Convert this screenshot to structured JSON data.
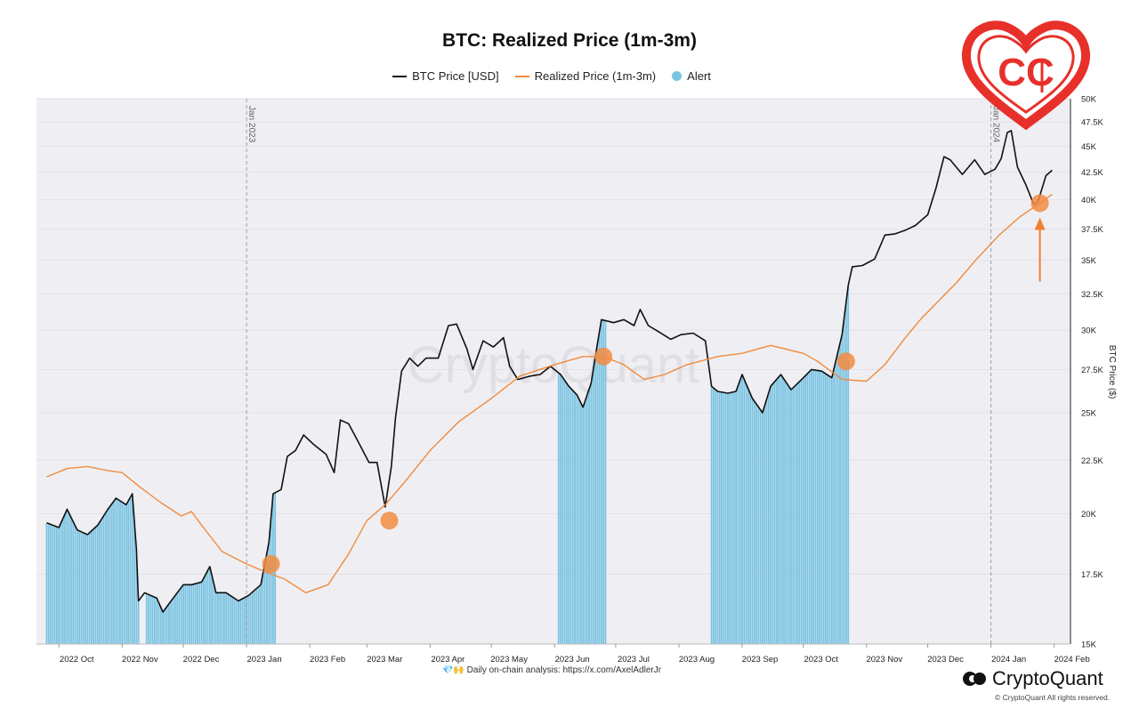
{
  "header": {
    "title": "BTC: Realized Price (1m-3m)"
  },
  "legend": {
    "price_label": "BTC Price [USD]",
    "realized_label": "Realized Price (1m-3m)",
    "alert_label": "Alert"
  },
  "footer": {
    "note": "💎🙌 Daily on-chain analysis: https://x.com/AxelAdlerJr",
    "brand": "CryptoQuant",
    "copyright": "© CryptoQuant All rights reserved."
  },
  "colors": {
    "price": "#111111",
    "realized": "#f08a3c",
    "alert": "#79c3e2",
    "plot_bg": "#efeff3",
    "marker": "#f28c42",
    "logo_red": "#e8302a"
  },
  "icons": {
    "logo": "cc-heart-logo",
    "brand": "cryptoquant-logo-icon"
  },
  "chart_data": {
    "type": "line",
    "title": "BTC: Realized Price (1m-3m)",
    "ylabel": "BTC Price ($)",
    "y_scale": "log",
    "ylim": [
      15000,
      50000
    ],
    "xlim": [
      "2022-09-20",
      "2024-02-09"
    ],
    "x_ticks": [
      {
        "date": "2022-10-01",
        "label": "2022 Oct"
      },
      {
        "date": "2022-11-01",
        "label": "2022 Nov"
      },
      {
        "date": "2022-12-01",
        "label": "2022 Dec"
      },
      {
        "date": "2023-01-01",
        "label": "2023 Jan"
      },
      {
        "date": "2023-02-01",
        "label": "2023 Feb"
      },
      {
        "date": "2023-03-01",
        "label": "2023 Mar"
      },
      {
        "date": "2023-04-01",
        "label": "2023 Apr"
      },
      {
        "date": "2023-05-01",
        "label": "2023 May"
      },
      {
        "date": "2023-06-01",
        "label": "2023 Jun"
      },
      {
        "date": "2023-07-01",
        "label": "2023 Jul"
      },
      {
        "date": "2023-08-01",
        "label": "2023 Aug"
      },
      {
        "date": "2023-09-01",
        "label": "2023 Sep"
      },
      {
        "date": "2023-10-01",
        "label": "2023 Oct"
      },
      {
        "date": "2023-11-01",
        "label": "2023 Nov"
      },
      {
        "date": "2023-12-01",
        "label": "2023 Dec"
      },
      {
        "date": "2024-01-01",
        "label": "2024 Jan"
      },
      {
        "date": "2024-02-01",
        "label": "2024 Feb"
      }
    ],
    "y_ticks": [
      {
        "value": 15000,
        "label": "15K"
      },
      {
        "value": 17500,
        "label": "17.5K"
      },
      {
        "value": 20000,
        "label": "20K"
      },
      {
        "value": 22500,
        "label": "22.5K"
      },
      {
        "value": 25000,
        "label": "25K"
      },
      {
        "value": 27500,
        "label": "27.5K"
      },
      {
        "value": 30000,
        "label": "30K"
      },
      {
        "value": 32500,
        "label": "32.5K"
      },
      {
        "value": 35000,
        "label": "35K"
      },
      {
        "value": 37500,
        "label": "37.5K"
      },
      {
        "value": 40000,
        "label": "40K"
      },
      {
        "value": 42500,
        "label": "42.5K"
      },
      {
        "value": 45000,
        "label": "45K"
      },
      {
        "value": 47500,
        "label": "47.5K"
      },
      {
        "value": 50000,
        "label": "50K"
      }
    ],
    "vlines": [
      {
        "date": "2023-01-01",
        "label": "Jan 2023"
      },
      {
        "date": "2024-01-01",
        "label": "Jan 2024"
      }
    ],
    "watermark": "CryptoQuant",
    "series": [
      {
        "name": "BTC Price [USD]",
        "x": [
          "2022-09-25",
          "2022-10-01",
          "2022-10-05",
          "2022-10-10",
          "2022-10-15",
          "2022-10-20",
          "2022-10-25",
          "2022-10-29",
          "2022-11-03",
          "2022-11-06",
          "2022-11-08",
          "2022-11-09",
          "2022-11-12",
          "2022-11-18",
          "2022-11-21",
          "2022-11-25",
          "2022-12-01",
          "2022-12-05",
          "2022-12-10",
          "2022-12-14",
          "2022-12-17",
          "2022-12-22",
          "2022-12-28",
          "2023-01-02",
          "2023-01-08",
          "2023-01-12",
          "2023-01-14",
          "2023-01-18",
          "2023-01-21",
          "2023-01-25",
          "2023-01-29",
          "2023-02-03",
          "2023-02-09",
          "2023-02-13",
          "2023-02-16",
          "2023-02-20",
          "2023-02-25",
          "2023-03-02",
          "2023-03-06",
          "2023-03-10",
          "2023-03-13",
          "2023-03-15",
          "2023-03-18",
          "2023-03-22",
          "2023-03-26",
          "2023-03-30",
          "2023-04-05",
          "2023-04-10",
          "2023-04-14",
          "2023-04-19",
          "2023-04-22",
          "2023-04-27",
          "2023-05-02",
          "2023-05-07",
          "2023-05-10",
          "2023-05-14",
          "2023-05-20",
          "2023-05-25",
          "2023-05-30",
          "2023-06-04",
          "2023-06-08",
          "2023-06-12",
          "2023-06-15",
          "2023-06-19",
          "2023-06-21",
          "2023-06-24",
          "2023-06-30",
          "2023-07-05",
          "2023-07-10",
          "2023-07-13",
          "2023-07-17",
          "2023-07-22",
          "2023-07-28",
          "2023-08-02",
          "2023-08-08",
          "2023-08-14",
          "2023-08-17",
          "2023-08-20",
          "2023-08-25",
          "2023-08-29",
          "2023-09-01",
          "2023-09-06",
          "2023-09-11",
          "2023-09-15",
          "2023-09-20",
          "2023-09-25",
          "2023-10-01",
          "2023-10-05",
          "2023-10-10",
          "2023-10-15",
          "2023-10-18",
          "2023-10-20",
          "2023-10-23",
          "2023-10-25",
          "2023-10-30",
          "2023-11-05",
          "2023-11-10",
          "2023-11-15",
          "2023-11-20",
          "2023-11-25",
          "2023-12-01",
          "2023-12-05",
          "2023-12-09",
          "2023-12-12",
          "2023-12-18",
          "2023-12-24",
          "2023-12-29",
          "2024-01-03",
          "2024-01-06",
          "2024-01-09",
          "2024-01-11",
          "2024-01-14",
          "2024-01-18",
          "2024-01-22",
          "2024-01-24",
          "2024-01-28",
          "2024-01-31"
        ],
        "y": [
          19600,
          19400,
          20200,
          19300,
          19100,
          19500,
          20200,
          20700,
          20400,
          20900,
          18500,
          16500,
          16800,
          16600,
          16100,
          16500,
          17100,
          17100,
          17200,
          17800,
          16800,
          16800,
          16500,
          16700,
          17100,
          18800,
          20900,
          21100,
          22700,
          23000,
          23800,
          23300,
          22800,
          21900,
          24600,
          24400,
          23400,
          22400,
          22400,
          20300,
          22200,
          24700,
          27400,
          28200,
          27700,
          28200,
          28200,
          30300,
          30400,
          28800,
          27500,
          29300,
          28900,
          29500,
          27700,
          26900,
          27100,
          27200,
          27700,
          27200,
          26500,
          26000,
          25300,
          26700,
          28300,
          30700,
          30500,
          30700,
          30300,
          31400,
          30300,
          29900,
          29400,
          29700,
          29800,
          29300,
          26500,
          26200,
          26100,
          26200,
          27200,
          25800,
          25000,
          26500,
          27200,
          26300,
          27000,
          27500,
          27400,
          27000,
          28600,
          29700,
          33100,
          34500,
          34600,
          35100,
          37000,
          37100,
          37400,
          37800,
          38700,
          41000,
          44000,
          43700,
          42300,
          43700,
          42300,
          42800,
          43800,
          46400,
          46600,
          43000,
          41400,
          39600,
          39800,
          42200,
          42700
        ]
      },
      {
        "name": "Realized Price (1m-3m)",
        "x": [
          "2022-09-25",
          "2022-10-05",
          "2022-10-15",
          "2022-10-25",
          "2022-11-01",
          "2022-11-10",
          "2022-11-20",
          "2022-11-30",
          "2022-12-05",
          "2022-12-10",
          "2022-12-20",
          "2023-01-01",
          "2023-01-10",
          "2023-01-20",
          "2023-01-30",
          "2023-02-10",
          "2023-02-20",
          "2023-03-01",
          "2023-03-10",
          "2023-03-20",
          "2023-04-01",
          "2023-04-15",
          "2023-05-01",
          "2023-05-15",
          "2023-06-01",
          "2023-06-15",
          "2023-06-25",
          "2023-07-05",
          "2023-07-15",
          "2023-07-25",
          "2023-08-05",
          "2023-08-20",
          "2023-09-01",
          "2023-09-15",
          "2023-10-01",
          "2023-10-08",
          "2023-10-20",
          "2023-11-01",
          "2023-11-10",
          "2023-11-20",
          "2023-11-28",
          "2023-12-05",
          "2023-12-15",
          "2023-12-25",
          "2024-01-05",
          "2024-01-15",
          "2024-01-25",
          "2024-01-31"
        ],
        "y": [
          21700,
          22100,
          22200,
          22000,
          21900,
          21200,
          20500,
          19900,
          20100,
          19500,
          18400,
          17900,
          17600,
          17300,
          16800,
          17100,
          18300,
          19700,
          20400,
          21500,
          23000,
          24500,
          25800,
          27100,
          27800,
          28300,
          28300,
          27800,
          26900,
          27200,
          27800,
          28300,
          28500,
          29000,
          28500,
          28000,
          26900,
          26800,
          27800,
          29500,
          30800,
          31800,
          33300,
          35100,
          37000,
          38500,
          39700,
          40500
        ]
      }
    ],
    "alert_periods": [
      {
        "start": "2022-09-25",
        "end": "2022-11-09"
      },
      {
        "start": "2022-11-13",
        "end": "2023-01-15"
      },
      {
        "start": "2023-06-03",
        "end": "2023-06-26"
      },
      {
        "start": "2023-08-17",
        "end": "2023-10-23"
      }
    ],
    "crossover_markers": [
      {
        "date": "2023-01-13",
        "value": 17900
      },
      {
        "date": "2023-03-12",
        "value": 19700
      },
      {
        "date": "2023-06-25",
        "value": 28300
      },
      {
        "date": "2023-10-22",
        "value": 28000
      },
      {
        "date": "2024-01-25",
        "value": 39700
      }
    ]
  }
}
